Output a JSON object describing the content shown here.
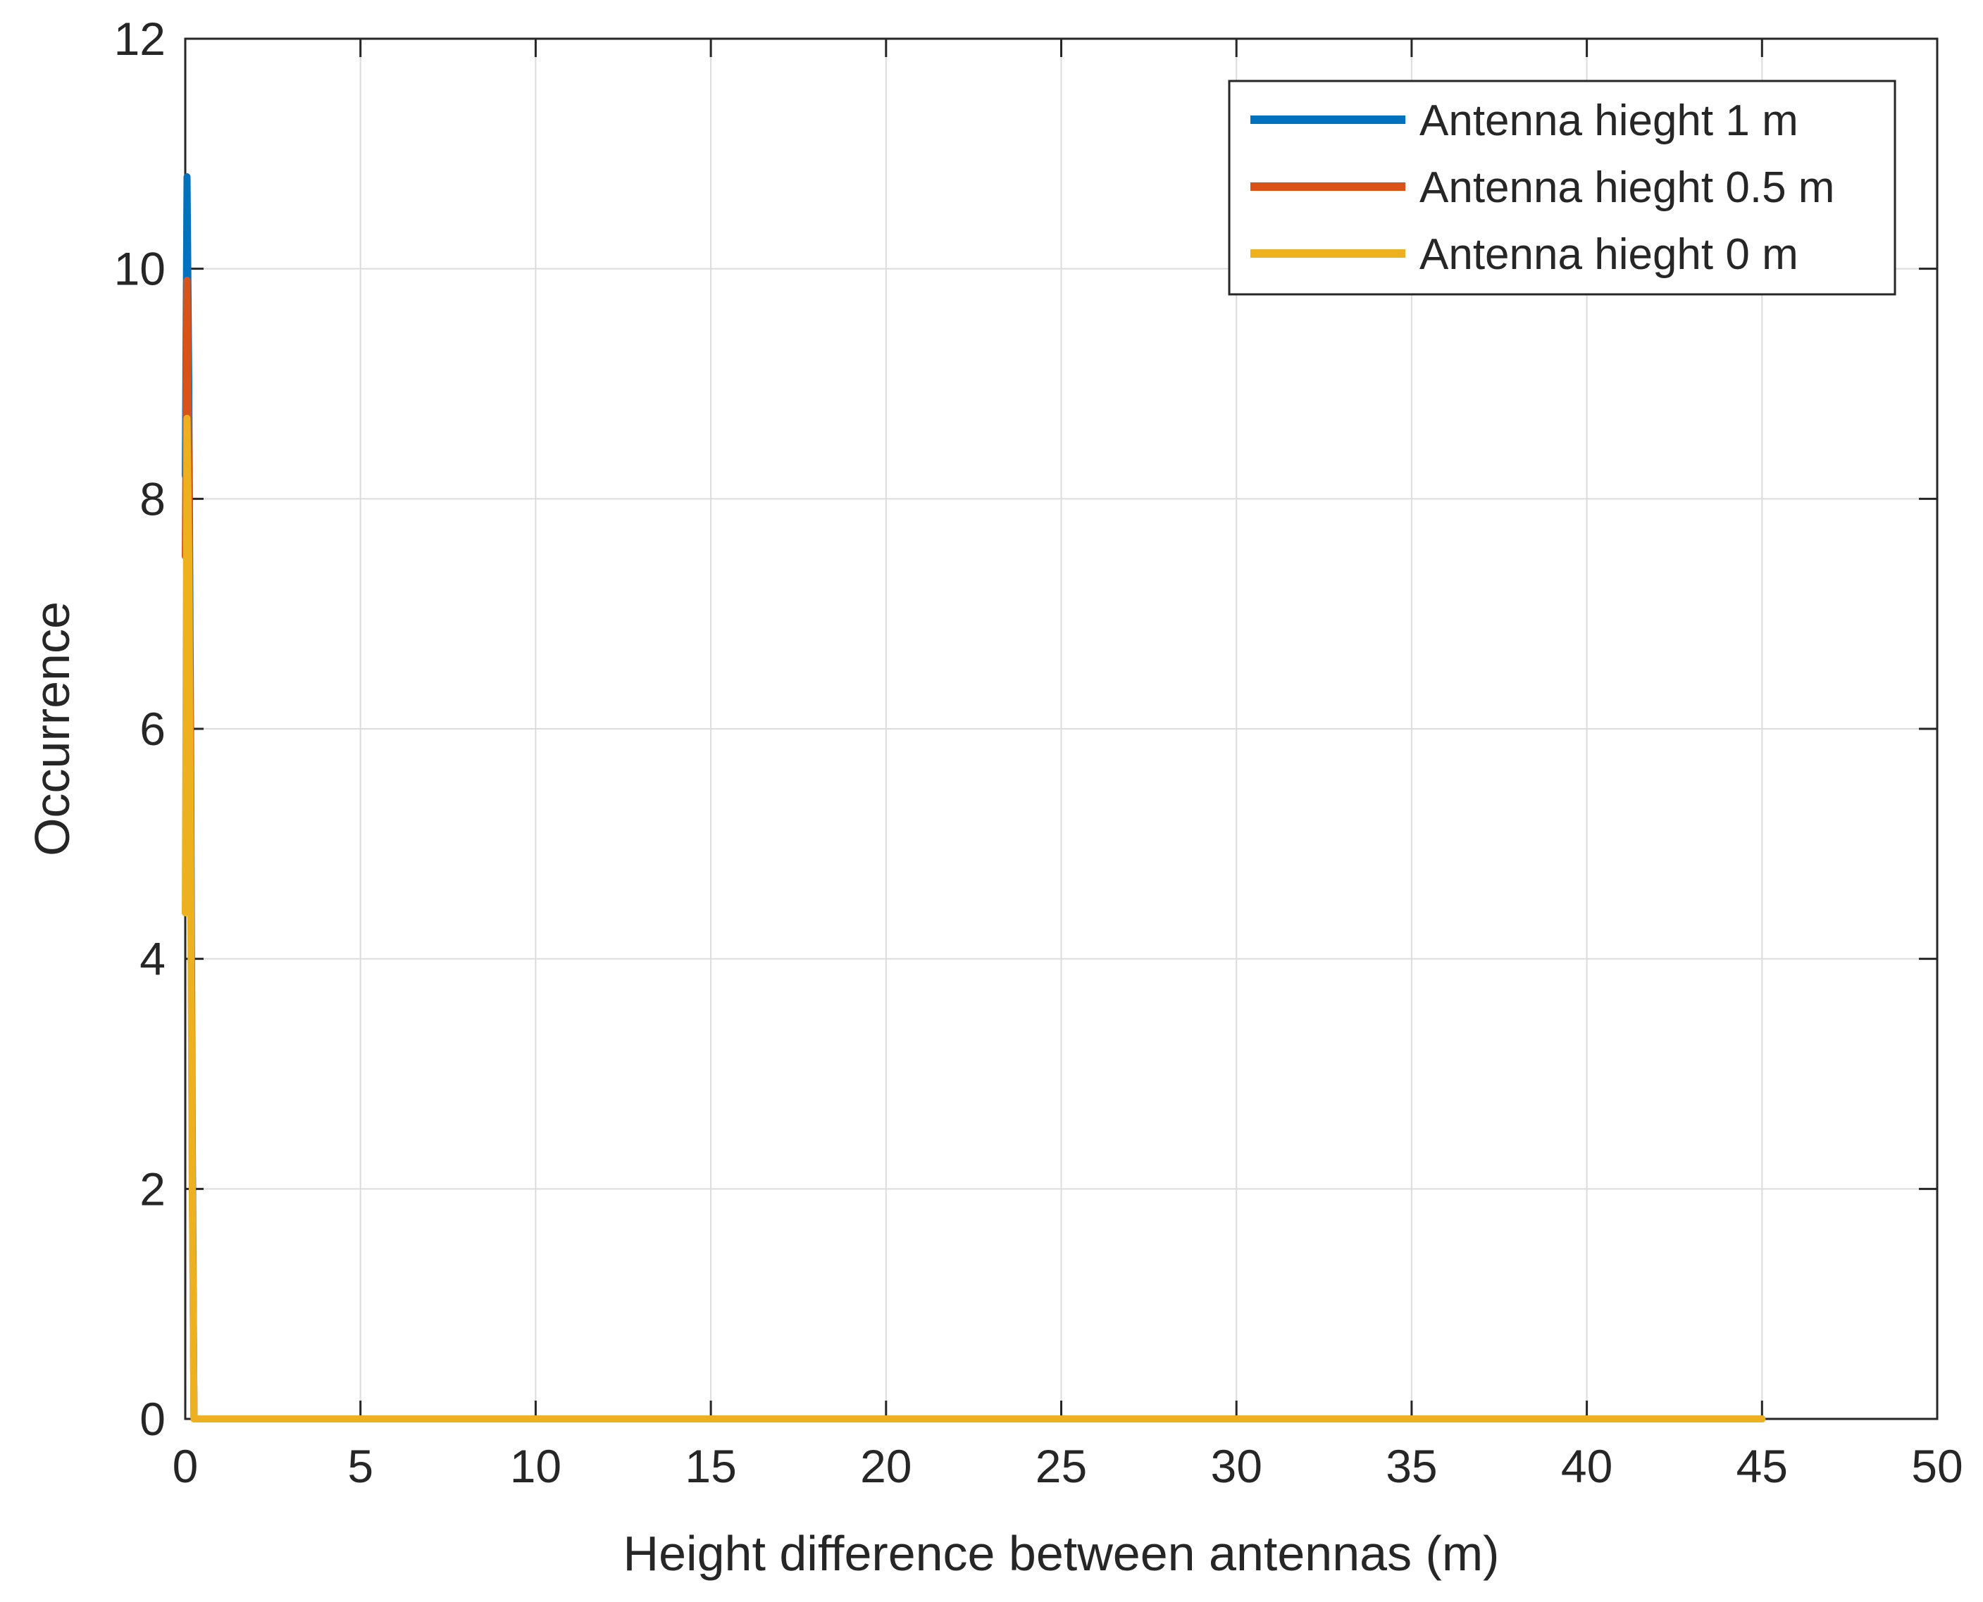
{
  "chart_data": {
    "type": "line",
    "title": "",
    "xlabel": "Height difference between antennas (m)",
    "ylabel": "Occurrence",
    "xlim": [
      0,
      50
    ],
    "ylim": [
      0,
      12
    ],
    "xticks": [
      0,
      5,
      10,
      15,
      20,
      25,
      30,
      35,
      40,
      45,
      50
    ],
    "yticks": [
      0,
      2,
      4,
      6,
      8,
      10,
      12
    ],
    "xtick_labels": [
      "0",
      "5",
      "10",
      "15",
      "20",
      "25",
      "30",
      "35",
      "40",
      "45",
      "50"
    ],
    "ytick_labels": [
      "0",
      "2",
      "4",
      "6",
      "8",
      "10",
      "12"
    ],
    "grid": true,
    "legend_position": "top-right",
    "series": [
      {
        "name": "Antenna hieght 1 m",
        "color": "#0072BD",
        "x": [
          0,
          0.05,
          0.1,
          0.15,
          0.2,
          0.25,
          45
        ],
        "y": [
          8.2,
          10.8,
          9.0,
          6.0,
          2.5,
          0,
          0
        ]
      },
      {
        "name": "Antenna hieght 0.5 m",
        "color": "#D95319",
        "x": [
          0,
          0.05,
          0.1,
          0.15,
          0.2,
          0.25,
          45
        ],
        "y": [
          7.5,
          9.9,
          8.3,
          5.5,
          2.2,
          0,
          0
        ]
      },
      {
        "name": "Antenna hieght 0 m",
        "color": "#EDB120",
        "x": [
          0,
          0.05,
          0.1,
          0.15,
          0.2,
          0.25,
          45
        ],
        "y": [
          4.4,
          8.7,
          7.5,
          5.0,
          2.0,
          0,
          0
        ]
      }
    ]
  }
}
